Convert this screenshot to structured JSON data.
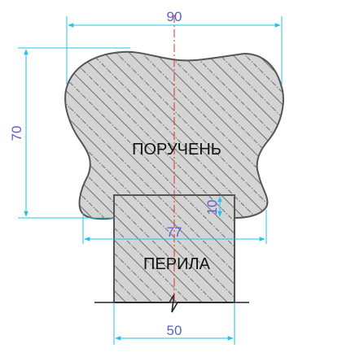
{
  "diagram": {
    "handrail_label": "ПОРУЧЕНЬ",
    "baluster_label": "ПЕРИЛА",
    "dimensions": {
      "handrail_width": "90",
      "handrail_height": "70",
      "groove_depth": "10",
      "bottom_width": "77",
      "baluster_width": "50"
    }
  },
  "colors": {
    "profile_fill": "#d4d4d4",
    "outline": "#555555",
    "hatch": "#555555",
    "dimension_line": "#21c3ea",
    "dimension_text": "#5a5fd0",
    "centerline": "#e03030"
  }
}
